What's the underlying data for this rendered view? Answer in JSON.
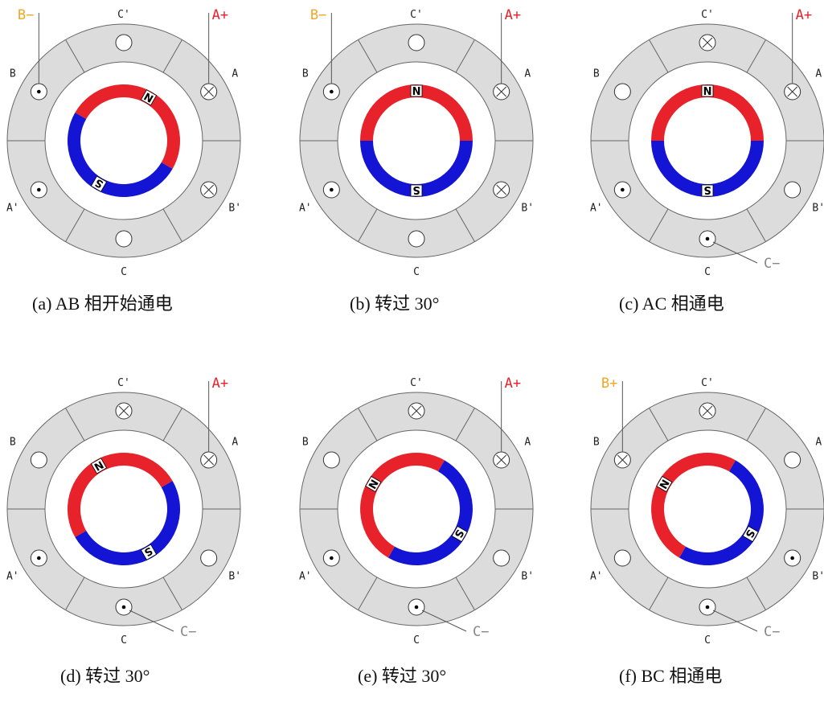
{
  "diagrams": [
    {
      "caption": "(a) AB 相开始通电",
      "rotor_angle": 60,
      "slots": [
        "cross",
        "empty",
        "dot",
        "dot",
        "empty",
        "cross"
      ],
      "leads": [
        {
          "slot": 0,
          "text": "A+",
          "color": "#e8222a"
        },
        {
          "slot": 2,
          "text": "B−",
          "color": "#f5a623"
        }
      ]
    },
    {
      "caption": "(b)  转过 30°",
      "rotor_angle": 90,
      "slots": [
        "cross",
        "empty",
        "dot",
        "dot",
        "empty",
        "cross"
      ],
      "leads": [
        {
          "slot": 0,
          "text": "A+",
          "color": "#e8222a"
        },
        {
          "slot": 2,
          "text": "B−",
          "color": "#f5a623"
        }
      ]
    },
    {
      "caption": "(c) AC 相通电",
      "rotor_angle": 90,
      "slots": [
        "cross",
        "cross",
        "empty",
        "dot",
        "dot",
        "empty"
      ],
      "leads": [
        {
          "slot": 0,
          "text": "A+",
          "color": "#e8222a"
        },
        {
          "slot": 4,
          "text": "C−",
          "color": "#888888"
        }
      ]
    },
    {
      "caption": "(d)  转过 30°",
      "rotor_angle": 120,
      "slots": [
        "cross",
        "cross",
        "empty",
        "dot",
        "dot",
        "empty"
      ],
      "leads": [
        {
          "slot": 0,
          "text": "A+",
          "color": "#e8222a"
        },
        {
          "slot": 4,
          "text": "C−",
          "color": "#888888"
        }
      ]
    },
    {
      "caption": "(e)  转过 30°",
      "rotor_angle": 150,
      "slots": [
        "cross",
        "cross",
        "empty",
        "dot",
        "dot",
        "empty"
      ],
      "leads": [
        {
          "slot": 0,
          "text": "A+",
          "color": "#e8222a"
        },
        {
          "slot": 4,
          "text": "C−",
          "color": "#888888"
        }
      ]
    },
    {
      "caption": "(f) BC 相通电",
      "rotor_angle": 150,
      "slots": [
        "empty",
        "cross",
        "cross",
        "empty",
        "dot",
        "dot"
      ],
      "leads": [
        {
          "slot": 2,
          "text": "B+",
          "color": "#f5a623"
        },
        {
          "slot": 4,
          "text": "C−",
          "color": "#888888"
        }
      ]
    }
  ],
  "slot_labels": [
    "A",
    "C'",
    "B",
    "A'",
    "C",
    "B'"
  ],
  "pole_labels": {
    "north": "N",
    "south": "S"
  },
  "colors": {
    "stator": "#dcdcdc",
    "stator_line": "#666666",
    "north": "#e8222a",
    "south": "#1414d4",
    "text": "#222222"
  }
}
